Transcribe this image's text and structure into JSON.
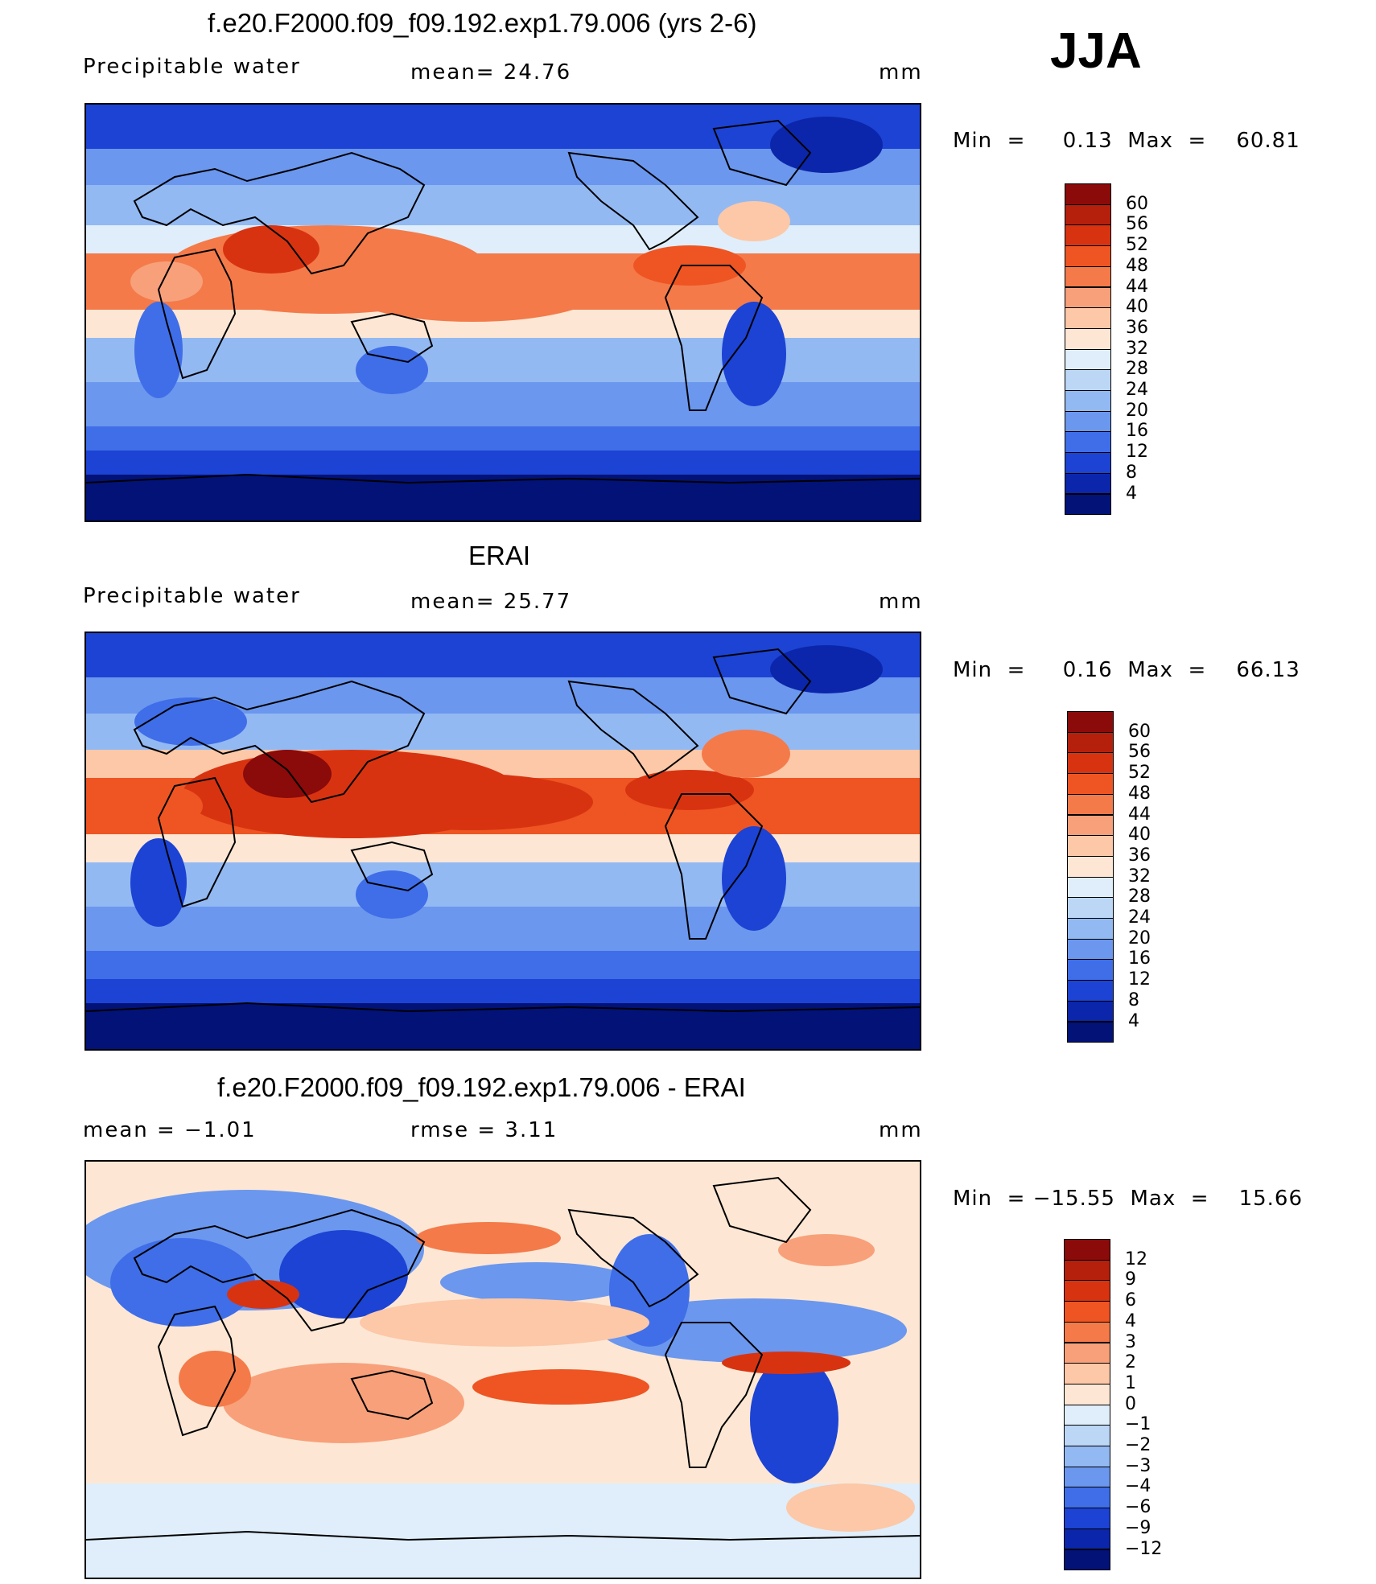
{
  "season": "JJA",
  "panels": [
    {
      "id": "model",
      "title": "f.e20.F2000.f09_f09.192.exp1.79.006 (yrs 2-6)",
      "left_label": "Precipitable  water",
      "center_label": "mean=   24.76",
      "units": "mm",
      "minmax": "Min  =     0.13  Max  =    60.81",
      "colorbar": {
        "labels": [
          "60",
          "56",
          "52",
          "48",
          "44",
          "40",
          "36",
          "32",
          "28",
          "24",
          "20",
          "16",
          "12",
          "8",
          "4"
        ],
        "colors": [
          "#8b0a0a",
          "#b5200d",
          "#d83311",
          "#ee5522",
          "#f47a4a",
          "#f8a07a",
          "#fcc8a8",
          "#fde7d4",
          "#dfeefa",
          "#bcd6f6",
          "#93b9f3",
          "#6b97ee",
          "#3f6ee8",
          "#1c43d4",
          "#0b26aa",
          "#031277"
        ]
      }
    },
    {
      "id": "obs",
      "title": "ERAI",
      "left_label": "Precipitable  water",
      "center_label": "mean=   25.77",
      "units": "mm",
      "minmax": "Min  =     0.16  Max  =    66.13",
      "colorbar": {
        "labels": [
          "60",
          "56",
          "52",
          "48",
          "44",
          "40",
          "36",
          "32",
          "28",
          "24",
          "20",
          "16",
          "12",
          "8",
          "4"
        ],
        "colors": [
          "#8b0a0a",
          "#b5200d",
          "#d83311",
          "#ee5522",
          "#f47a4a",
          "#f8a07a",
          "#fcc8a8",
          "#fde7d4",
          "#dfeefa",
          "#bcd6f6",
          "#93b9f3",
          "#6b97ee",
          "#3f6ee8",
          "#1c43d4",
          "#0b26aa",
          "#031277"
        ]
      }
    },
    {
      "id": "diff",
      "title": "f.e20.F2000.f09_f09.192.exp1.79.006 - ERAI",
      "left_label": "mean  =    −1.01",
      "center_label": "rmse  =     3.11",
      "units": "mm",
      "minmax": "Min  = −15.55  Max  =    15.66",
      "colorbar": {
        "labels": [
          "12",
          "9",
          "6",
          "4",
          "3",
          "2",
          "1",
          "0",
          "−1",
          "−2",
          "−3",
          "−4",
          "−6",
          "−9",
          "−12"
        ],
        "colors": [
          "#8b0a0a",
          "#b5200d",
          "#d83311",
          "#ee5522",
          "#f47a4a",
          "#f8a07a",
          "#fcc8a8",
          "#fde7d4",
          "#dfeefa",
          "#bcd6f6",
          "#93b9f3",
          "#6b97ee",
          "#3f6ee8",
          "#1c43d4",
          "#0b26aa",
          "#031277"
        ]
      }
    }
  ],
  "chart_data": [
    {
      "type": "heatmap",
      "title": "f.e20.F2000.f09_f09.192.exp1.79.006 (yrs 2-6)",
      "variable": "Precipitable water",
      "units": "mm",
      "mean": 24.76,
      "min": 0.13,
      "max": 60.81,
      "contour_levels": [
        4,
        8,
        12,
        16,
        20,
        24,
        28,
        32,
        36,
        40,
        44,
        48,
        52,
        56,
        60
      ]
    },
    {
      "type": "heatmap",
      "title": "ERAI",
      "variable": "Precipitable water",
      "units": "mm",
      "mean": 25.77,
      "min": 0.16,
      "max": 66.13,
      "contour_levels": [
        4,
        8,
        12,
        16,
        20,
        24,
        28,
        32,
        36,
        40,
        44,
        48,
        52,
        56,
        60
      ]
    },
    {
      "type": "heatmap",
      "title": "f.e20.F2000.f09_f09.192.exp1.79.006 - ERAI",
      "units": "mm",
      "mean": -1.01,
      "rmse": 3.11,
      "min": -15.55,
      "max": 15.66,
      "contour_levels": [
        -12,
        -9,
        -6,
        -4,
        -3,
        -2,
        -1,
        0,
        1,
        2,
        3,
        4,
        6,
        9,
        12
      ]
    }
  ]
}
